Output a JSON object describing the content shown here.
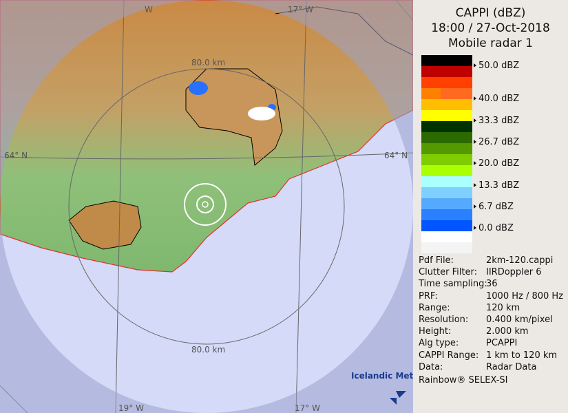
{
  "header": {
    "title": "CAPPI (dBZ)",
    "datetime": "18:00 / 27-Oct-2018",
    "radar": "Mobile radar 1"
  },
  "legend": {
    "swatches": [
      "#000000",
      "#bf0000",
      "#ff4000",
      "#ff8000",
      "#ffbf00",
      "#ffff00",
      "#003300",
      "#2a6a00",
      "#559900",
      "#80cc00",
      "#aaff00",
      "#aaffff",
      "#80d0ff",
      "#55aaff",
      "#2a80ff",
      "#0055ff",
      "#ffffff",
      "#f4f4f4"
    ],
    "ticks": [
      "50.0 dBZ",
      "40.0 dBZ",
      "33.3 dBZ",
      "26.7 dBZ",
      "20.0 dBZ",
      "13.3 dBZ",
      "6.7 dBZ",
      "0.0 dBZ"
    ]
  },
  "info": [
    {
      "k": "Pdf File:",
      "v": "2km-120.cappi"
    },
    {
      "k": "Clutter Filter:",
      "v": "IIRDoppler 6"
    },
    {
      "k": "Time sampling:",
      "v": "36"
    },
    {
      "k": "PRF:",
      "v": "1000 Hz / 800 Hz"
    },
    {
      "k": "Range:",
      "v": "120 km"
    },
    {
      "k": "Resolution:",
      "v": "0.400 km/pixel"
    },
    {
      "k": "Height:",
      "v": "2.000 km"
    },
    {
      "k": "Alg type:",
      "v": "PCAPPI"
    },
    {
      "k": "CAPPI Range:",
      "v": "1 km to 120 km"
    },
    {
      "k": "Data:",
      "v": "Radar Data"
    }
  ],
  "credit": "Rainbow® SELEX-SI",
  "map": {
    "labels": {
      "top_w": "W",
      "top_17w": "17° W",
      "lat_left": "64° N",
      "lat_right": "64° N",
      "ring_top": "80.0 km",
      "ring_bottom": "80.0 km",
      "bottom_19w": "19° W",
      "bottom_17w": "17° W"
    },
    "logo": "Icelandic Met Office",
    "colors": {
      "sea": "#d4daf8",
      "outside": "#b2b8d8",
      "coast": "#e03030",
      "land_low": "#7fb86f",
      "land_high": "#c98a45"
    }
  }
}
